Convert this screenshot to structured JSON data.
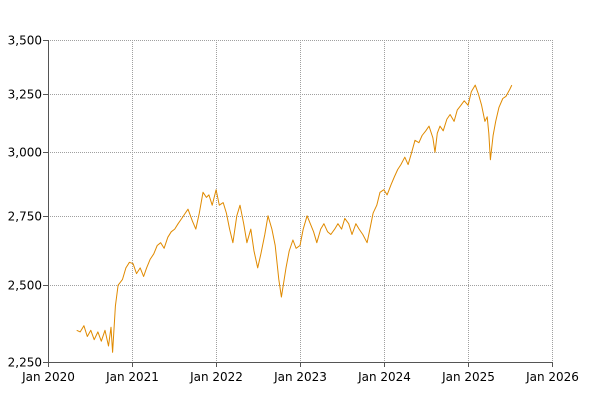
{
  "colors": {
    "line": "#e08a00",
    "grid": "#a0a0a0",
    "axis": "#555555",
    "text": "#000000",
    "background": "#ffffff"
  },
  "chart_data": {
    "type": "line",
    "title": "",
    "xlabel": "",
    "ylabel": "",
    "grid": true,
    "legend": "none",
    "scale": "log",
    "xlim": [
      "2020-01-01",
      "2026-01-01"
    ],
    "ylim": [
      2250,
      3500
    ],
    "x_ticks": [
      {
        "date": "2020-01-01",
        "label": "Jan 2020"
      },
      {
        "date": "2021-01-01",
        "label": "Jan 2021"
      },
      {
        "date": "2022-01-01",
        "label": "Jan 2022"
      },
      {
        "date": "2023-01-01",
        "label": "Jan 2023"
      },
      {
        "date": "2024-01-01",
        "label": "Jan 2024"
      },
      {
        "date": "2025-01-01",
        "label": "Jan 2025"
      },
      {
        "date": "2026-01-01",
        "label": "Jan 2026"
      }
    ],
    "y_ticks": [
      {
        "value": 2250,
        "label": "2,250"
      },
      {
        "value": 2500,
        "label": "2,500"
      },
      {
        "value": 2750,
        "label": "2,750"
      },
      {
        "value": 3000,
        "label": "3,000"
      },
      {
        "value": 3250,
        "label": "3,250"
      },
      {
        "value": 3500,
        "label": "3,500"
      }
    ],
    "series": [
      {
        "points": [
          [
            "2020-05-05",
            2350
          ],
          [
            "2020-05-20",
            2345
          ],
          [
            "2020-06-05",
            2365
          ],
          [
            "2020-06-20",
            2330
          ],
          [
            "2020-07-05",
            2350
          ],
          [
            "2020-07-20",
            2320
          ],
          [
            "2020-08-05",
            2345
          ],
          [
            "2020-08-20",
            2315
          ],
          [
            "2020-09-05",
            2350
          ],
          [
            "2020-09-20",
            2300
          ],
          [
            "2020-10-01",
            2360
          ],
          [
            "2020-10-08",
            2280
          ],
          [
            "2020-10-20",
            2430
          ],
          [
            "2020-11-01",
            2500
          ],
          [
            "2020-11-20",
            2520
          ],
          [
            "2020-12-05",
            2560
          ],
          [
            "2020-12-20",
            2580
          ],
          [
            "2021-01-05",
            2575
          ],
          [
            "2021-01-20",
            2540
          ],
          [
            "2021-02-05",
            2560
          ],
          [
            "2021-02-20",
            2530
          ],
          [
            "2021-03-05",
            2560
          ],
          [
            "2021-03-20",
            2590
          ],
          [
            "2021-04-05",
            2610
          ],
          [
            "2021-04-20",
            2640
          ],
          [
            "2021-05-05",
            2650
          ],
          [
            "2021-05-20",
            2630
          ],
          [
            "2021-06-05",
            2670
          ],
          [
            "2021-06-20",
            2690
          ],
          [
            "2021-07-05",
            2700
          ],
          [
            "2021-07-20",
            2720
          ],
          [
            "2021-08-05",
            2740
          ],
          [
            "2021-08-20",
            2760
          ],
          [
            "2021-09-01",
            2775
          ],
          [
            "2021-09-20",
            2730
          ],
          [
            "2021-10-05",
            2700
          ],
          [
            "2021-10-20",
            2760
          ],
          [
            "2021-11-05",
            2840
          ],
          [
            "2021-11-20",
            2820
          ],
          [
            "2021-12-01",
            2830
          ],
          [
            "2021-12-15",
            2790
          ],
          [
            "2022-01-01",
            2850
          ],
          [
            "2022-01-15",
            2790
          ],
          [
            "2022-02-01",
            2800
          ],
          [
            "2022-02-15",
            2760
          ],
          [
            "2022-03-01",
            2700
          ],
          [
            "2022-03-15",
            2650
          ],
          [
            "2022-04-01",
            2750
          ],
          [
            "2022-04-15",
            2790
          ],
          [
            "2022-05-01",
            2720
          ],
          [
            "2022-05-15",
            2650
          ],
          [
            "2022-06-01",
            2700
          ],
          [
            "2022-06-15",
            2620
          ],
          [
            "2022-07-01",
            2560
          ],
          [
            "2022-07-15",
            2610
          ],
          [
            "2022-08-01",
            2680
          ],
          [
            "2022-08-15",
            2750
          ],
          [
            "2022-09-01",
            2700
          ],
          [
            "2022-09-15",
            2640
          ],
          [
            "2022-10-01",
            2520
          ],
          [
            "2022-10-12",
            2460
          ],
          [
            "2022-11-01",
            2560
          ],
          [
            "2022-11-15",
            2620
          ],
          [
            "2022-12-01",
            2660
          ],
          [
            "2022-12-15",
            2630
          ],
          [
            "2023-01-01",
            2640
          ],
          [
            "2023-01-15",
            2700
          ],
          [
            "2023-02-01",
            2750
          ],
          [
            "2023-02-15",
            2720
          ],
          [
            "2023-03-01",
            2690
          ],
          [
            "2023-03-15",
            2650
          ],
          [
            "2023-04-01",
            2700
          ],
          [
            "2023-04-15",
            2720
          ],
          [
            "2023-05-01",
            2690
          ],
          [
            "2023-05-15",
            2680
          ],
          [
            "2023-06-01",
            2700
          ],
          [
            "2023-06-15",
            2720
          ],
          [
            "2023-07-01",
            2700
          ],
          [
            "2023-07-15",
            2740
          ],
          [
            "2023-08-01",
            2720
          ],
          [
            "2023-08-15",
            2680
          ],
          [
            "2023-09-01",
            2720
          ],
          [
            "2023-09-15",
            2700
          ],
          [
            "2023-10-01",
            2680
          ],
          [
            "2023-10-20",
            2650
          ],
          [
            "2023-11-01",
            2700
          ],
          [
            "2023-11-15",
            2760
          ],
          [
            "2023-12-01",
            2790
          ],
          [
            "2023-12-15",
            2840
          ],
          [
            "2024-01-01",
            2850
          ],
          [
            "2024-01-15",
            2830
          ],
          [
            "2024-02-01",
            2870
          ],
          [
            "2024-02-15",
            2900
          ],
          [
            "2024-03-01",
            2930
          ],
          [
            "2024-03-15",
            2950
          ],
          [
            "2024-04-01",
            2980
          ],
          [
            "2024-04-15",
            2950
          ],
          [
            "2024-05-01",
            3000
          ],
          [
            "2024-05-15",
            3050
          ],
          [
            "2024-06-01",
            3040
          ],
          [
            "2024-06-15",
            3070
          ],
          [
            "2024-07-01",
            3090
          ],
          [
            "2024-07-15",
            3110
          ],
          [
            "2024-08-01",
            3060
          ],
          [
            "2024-08-10",
            3000
          ],
          [
            "2024-08-20",
            3080
          ],
          [
            "2024-09-01",
            3110
          ],
          [
            "2024-09-15",
            3090
          ],
          [
            "2024-10-01",
            3140
          ],
          [
            "2024-10-15",
            3160
          ],
          [
            "2024-11-01",
            3130
          ],
          [
            "2024-11-15",
            3180
          ],
          [
            "2024-12-01",
            3200
          ],
          [
            "2024-12-15",
            3220
          ],
          [
            "2025-01-01",
            3200
          ],
          [
            "2025-01-15",
            3260
          ],
          [
            "2025-02-01",
            3290
          ],
          [
            "2025-02-15",
            3250
          ],
          [
            "2025-03-01",
            3200
          ],
          [
            "2025-03-15",
            3130
          ],
          [
            "2025-03-25",
            3150
          ],
          [
            "2025-04-01",
            3080
          ],
          [
            "2025-04-08",
            2970
          ],
          [
            "2025-04-20",
            3070
          ],
          [
            "2025-05-01",
            3130
          ],
          [
            "2025-05-15",
            3190
          ],
          [
            "2025-06-01",
            3230
          ],
          [
            "2025-06-15",
            3240
          ],
          [
            "2025-07-01",
            3270
          ],
          [
            "2025-07-10",
            3290
          ]
        ]
      }
    ]
  }
}
